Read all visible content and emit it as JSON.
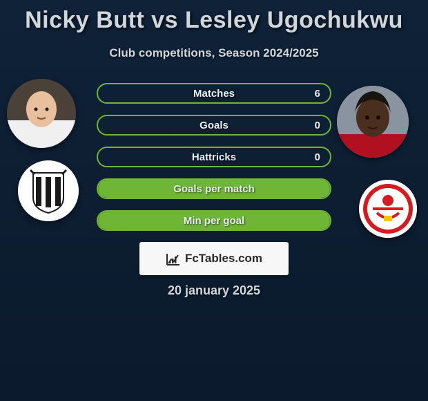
{
  "background_gradient": [
    "#0f2238",
    "#0b1a2c"
  ],
  "title_text": "Nicky Butt vs Lesley Ugochukwu",
  "title_color": "#d0d6dc",
  "title_fontsize": 34,
  "subtitle_text": "Club competitions, Season 2024/2025",
  "subtitle_color": "#d0d6dc",
  "subtitle_fontsize": 17,
  "stats": {
    "bar_border_color": "#6fb536",
    "bar_fill_color": "#6fb536",
    "label_color": "#e8eef4",
    "label_fontsize": 15,
    "rows": [
      {
        "label": "Matches",
        "left": "",
        "right": "6",
        "fill_pct": 0
      },
      {
        "label": "Goals",
        "left": "",
        "right": "0",
        "fill_pct": 0
      },
      {
        "label": "Hattricks",
        "left": "",
        "right": "0",
        "fill_pct": 0
      },
      {
        "label": "Goals per match",
        "left": "",
        "right": "",
        "fill_pct": 100
      },
      {
        "label": "Min per goal",
        "left": "",
        "right": "",
        "fill_pct": 100
      }
    ]
  },
  "player1": {
    "name": "Nicky Butt",
    "skin": "#e8c0a0",
    "hair": "#d8b060",
    "shirt": "#f0f0f0"
  },
  "player2": {
    "name": "Lesley Ugochukwu",
    "skin": "#4a2f1f",
    "hair": "#1a1410",
    "shirt": "#b01020"
  },
  "club1": {
    "name": "Newcastle",
    "primary": "#1a1a1a",
    "secondary": "#ffffff"
  },
  "club2": {
    "name": "Southampton",
    "primary": "#d71920",
    "secondary": "#ffffff",
    "accent": "#ffc20e"
  },
  "logo": {
    "text": "FcTables.com",
    "text_color": "#2a2a2a",
    "bg": "#f7f7f7",
    "icon_color": "#2a2a2a"
  },
  "date_text": "20 january 2025",
  "date_color": "#d0d6dc",
  "date_fontsize": 18
}
